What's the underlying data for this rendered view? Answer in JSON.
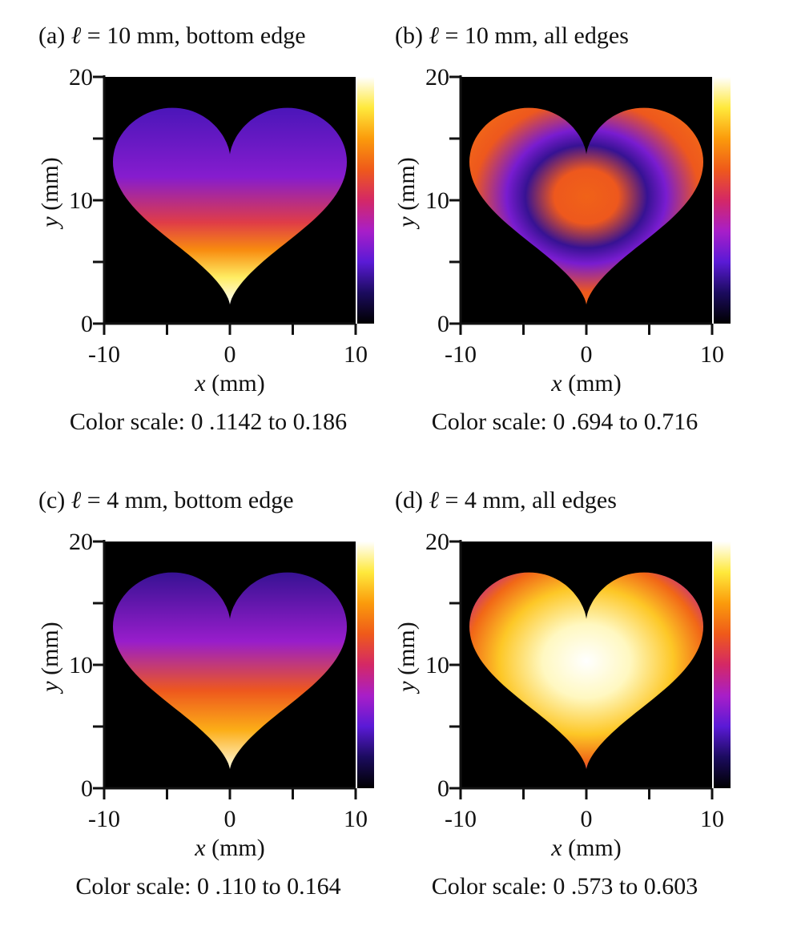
{
  "figure": {
    "panels": [
      {
        "id": "a",
        "label": "(a)",
        "ell_symbol": "ℓ",
        "condition": "= 10 mm, bottom edge",
        "color_scale": "Color scale: 0 .1142 to 0.186",
        "pattern": "bottom_edge_strong"
      },
      {
        "id": "b",
        "label": "(b)",
        "ell_symbol": "ℓ",
        "condition": "= 10 mm, all edges",
        "color_scale": "Color scale:  0 .694 to 0.716",
        "pattern": "all_edges_rings"
      },
      {
        "id": "c",
        "label": "(c)",
        "ell_symbol": "ℓ",
        "condition": "= 4 mm, bottom edge",
        "color_scale": "Color scale:  0 .110 to 0.164",
        "pattern": "bottom_edge_soft"
      },
      {
        "id": "d",
        "label": "(d)",
        "ell_symbol": "ℓ",
        "condition": "= 4 mm, all edges",
        "color_scale": "Color scale:  0 .573 to 0.603",
        "pattern": "all_edges_center"
      }
    ],
    "axes": {
      "x_var": "x",
      "x_unit": "(mm)",
      "y_var": "y",
      "y_unit": "(mm)",
      "x_ticks": [
        "-10",
        "0",
        "10"
      ],
      "y_ticks": [
        "0",
        "10",
        "20"
      ]
    },
    "colormap": [
      "#000000",
      "#1b0b5e",
      "#5a1ad6",
      "#a81ec8",
      "#d42866",
      "#ef5a1a",
      "#fb9b0b",
      "#ffe93c",
      "#ffffff"
    ],
    "background_color": "#000000"
  }
}
